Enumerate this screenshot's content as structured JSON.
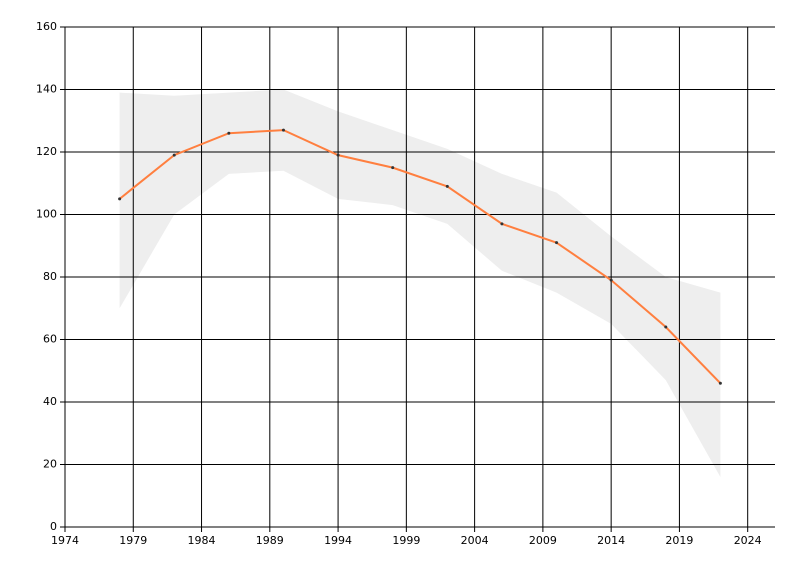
{
  "chart_data": {
    "type": "line",
    "x": [
      1978,
      1982,
      1986,
      1990,
      1994,
      1998,
      2002,
      2006,
      2010,
      2014,
      2018,
      2022
    ],
    "values": [
      105,
      119,
      126,
      127,
      119,
      115,
      109,
      97,
      91,
      79,
      64,
      46
    ],
    "color": "#ff7f3f",
    "band_upper": [
      139,
      138,
      139,
      140,
      133,
      127,
      121,
      113,
      107,
      93,
      80,
      75
    ],
    "band_lower": [
      70,
      100,
      113,
      114,
      105,
      103,
      97,
      82,
      75,
      65,
      47,
      16
    ],
    "band_color": "#eeeeee",
    "xlim": [
      1974,
      2026
    ],
    "xticks": [
      1974,
      1979,
      1984,
      1989,
      1994,
      1999,
      2004,
      2009,
      2014,
      2019,
      2024
    ],
    "ylim": [
      0,
      160
    ],
    "yticks": [
      0,
      20,
      40,
      60,
      80,
      100,
      120,
      140,
      160
    ],
    "grid": true
  }
}
